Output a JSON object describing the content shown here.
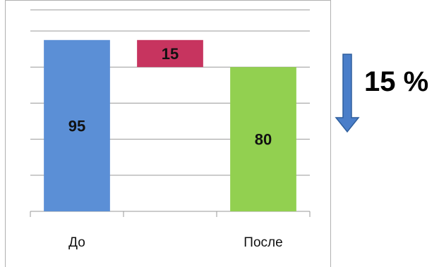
{
  "chart_data": {
    "type": "bar",
    "subtype": "waterfall",
    "categories": [
      "До",
      "",
      "После"
    ],
    "bars": [
      {
        "category": "До",
        "base": 0,
        "value": 95,
        "label": "95",
        "color": "#5b8fd6"
      },
      {
        "category": "",
        "base": 80,
        "value": 15,
        "label": "15",
        "color": "#c7345f"
      },
      {
        "category": "После",
        "base": 0,
        "value": 80,
        "label": "80",
        "color": "#92d050"
      }
    ],
    "ylim": [
      0,
      100
    ],
    "grid": true,
    "title": "",
    "xlabel": "",
    "ylabel": ""
  },
  "annotation": {
    "text": "15 %",
    "arrow_direction": "down",
    "arrow_color": "#4a7ec9"
  }
}
